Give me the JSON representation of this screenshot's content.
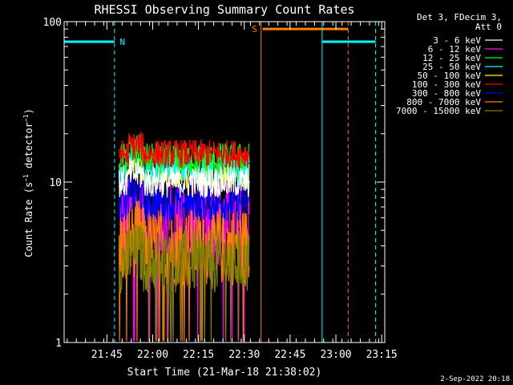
{
  "chart_data": {
    "type": "line",
    "title": "RHESSI Observing Summary Count Rates",
    "xlabel": "Start Time (21-Mar-18 21:38:02)",
    "ylabel": "Count Rate (s⁻¹ detector⁻¹)",
    "ylabel_parts": {
      "main": "Count Rate (s",
      "sup1": "−1",
      "mid": " detector",
      "sup2": "−1",
      "end": ")"
    },
    "yscale": "log",
    "ylim": [
      1,
      100
    ],
    "y_ticks": [
      {
        "value": 1,
        "label": "1"
      },
      {
        "value": 10,
        "label": "10"
      },
      {
        "value": 100,
        "label": "100"
      }
    ],
    "x_range_min": [
      -7,
      98
    ],
    "x_ticks": [
      {
        "min": 7,
        "label": "21:45"
      },
      {
        "min": 22,
        "label": "22:00"
      },
      {
        "min": 37,
        "label": "22:15"
      },
      {
        "min": 52,
        "label": "22:30"
      },
      {
        "min": 67,
        "label": "22:45"
      },
      {
        "min": 82,
        "label": "23:00"
      },
      {
        "min": 97,
        "label": "23:15"
      }
    ],
    "data_span_min": [
      11,
      53.6
    ],
    "legend_header": [
      "Det 3, FDecim 3,",
      "Att 0"
    ],
    "series": [
      {
        "name": "3 - 6 keV",
        "color": "#ffffff",
        "level": 10.0,
        "spread": 0.1
      },
      {
        "name": "6 - 12 keV",
        "color": "#ff00ff",
        "level": 5.5,
        "spread": 0.3
      },
      {
        "name": "12 - 25 keV",
        "color": "#00ff00",
        "level": 14.0,
        "spread": 0.1
      },
      {
        "name": "25 - 50 keV",
        "color": "#00ffff",
        "level": 12.0,
        "spread": 0.1
      },
      {
        "name": "50 - 100 keV",
        "color": "#ffff00",
        "level": 11.0,
        "spread": 0.08
      },
      {
        "name": "100 - 300 keV",
        "color": "#ff0000",
        "level": 15.0,
        "spread": 0.09
      },
      {
        "name": "300 - 800 keV",
        "color": "#0000ff",
        "level": 7.5,
        "spread": 0.12
      },
      {
        "name": "800 - 7000 keV",
        "color": "#ff8000",
        "level": 4.0,
        "spread": 0.25
      },
      {
        "name": "7000 - 15000 keV",
        "color": "#808000",
        "level": 3.2,
        "spread": 0.2
      }
    ],
    "annotations": [
      {
        "type": "orbit_bar",
        "label": "N",
        "color": "#00ffff",
        "start_min": -7,
        "end_min": 9.5,
        "y": 75
      },
      {
        "type": "orbit_bar",
        "label": "",
        "color": "#00ffff",
        "start_min": 77.5,
        "end_min": 95,
        "y": 75
      },
      {
        "type": "saa_bar",
        "label": "S",
        "color": "#ff8000",
        "start_min": 58,
        "end_min": 86,
        "y": 90
      },
      {
        "type": "vline",
        "color": "#00ffff",
        "style": "solid",
        "min": -7
      },
      {
        "type": "vline",
        "color": "#00ffff",
        "style": "dashed",
        "min": 9.5
      },
      {
        "type": "vline",
        "color": "#ff8000",
        "style": "solid",
        "min": 57.5
      },
      {
        "type": "vline",
        "color": "#00ffff",
        "style": "solid",
        "min": 77.5
      },
      {
        "type": "vline",
        "color": "#ff8000",
        "style": "dashed",
        "min": 86
      },
      {
        "type": "vline",
        "color": "#00ffff",
        "style": "dashed",
        "min": 95
      }
    ]
  },
  "footer_date": "2-Sep-2022 20:18"
}
